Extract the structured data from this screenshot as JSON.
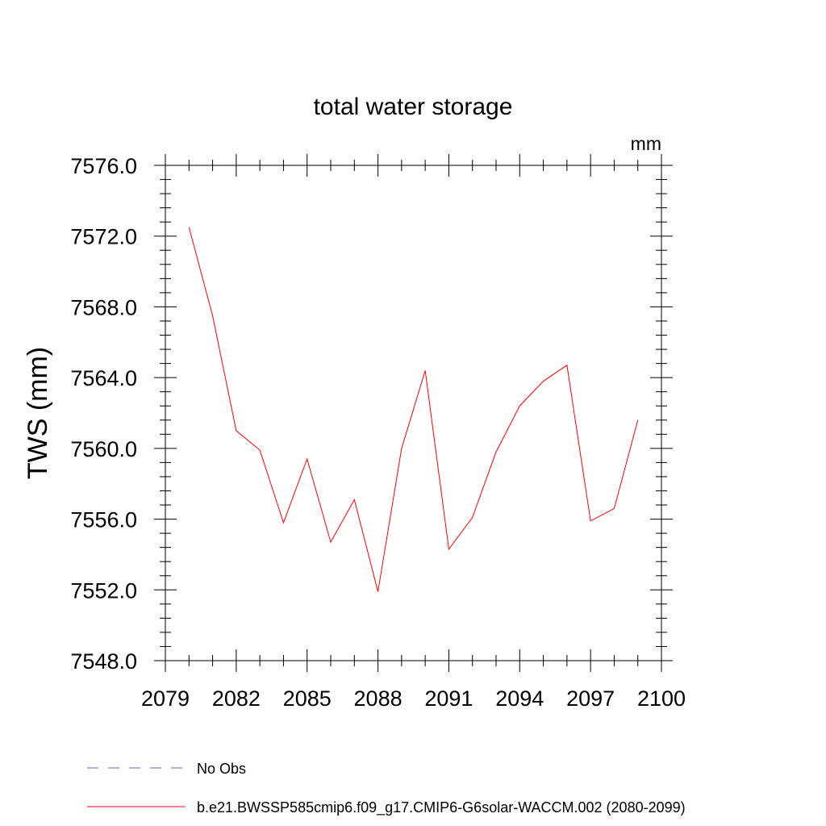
{
  "chart_data": {
    "type": "line",
    "title": "total water storage",
    "units": "mm",
    "ylabel": "TWS  (mm)",
    "xlabel": "",
    "xlim": [
      2079,
      2100
    ],
    "ylim": [
      7548.0,
      7576.0
    ],
    "x_ticks": [
      2079,
      2082,
      2085,
      2088,
      2091,
      2094,
      2097,
      2100
    ],
    "y_ticks": [
      7548.0,
      7552.0,
      7556.0,
      7560.0,
      7564.0,
      7568.0,
      7572.0,
      7576.0
    ],
    "x_tick_labels": [
      "2079",
      "2082",
      "2085",
      "2088",
      "2091",
      "2094",
      "2097",
      "2100"
    ],
    "y_tick_labels": [
      "7548.0",
      "7552.0",
      "7556.0",
      "7560.0",
      "7564.0",
      "7568.0",
      "7572.0",
      "7576.0"
    ],
    "series": [
      {
        "name": "b.e21.BWSSP585cmip6.f09_g17.CMIP6-G6solar-WACCM.002 (2080-2099)",
        "color": "#ff0000",
        "style": "solid",
        "x": [
          2080,
          2081,
          2082,
          2083,
          2084,
          2085,
          2086,
          2087,
          2088,
          2089,
          2090,
          2091,
          2092,
          2093,
          2094,
          2095,
          2096,
          2097,
          2098,
          2099
        ],
        "y": [
          7572.5,
          7567.5,
          7561.0,
          7559.9,
          7555.8,
          7559.4,
          7554.7,
          7557.1,
          7551.9,
          7560.0,
          7564.4,
          7554.3,
          7556.1,
          7559.8,
          7562.4,
          7563.8,
          7564.7,
          7555.9,
          7556.6,
          7561.6
        ]
      }
    ],
    "legend": [
      {
        "label": "No Obs",
        "color": "#6a5acd",
        "style": "dashed"
      },
      {
        "label": "b.e21.BWSSP585cmip6.f09_g17.CMIP6-G6solar-WACCM.002 (2080-2099)",
        "color": "#ff0000",
        "style": "solid"
      }
    ],
    "legend_position": "bottom"
  }
}
